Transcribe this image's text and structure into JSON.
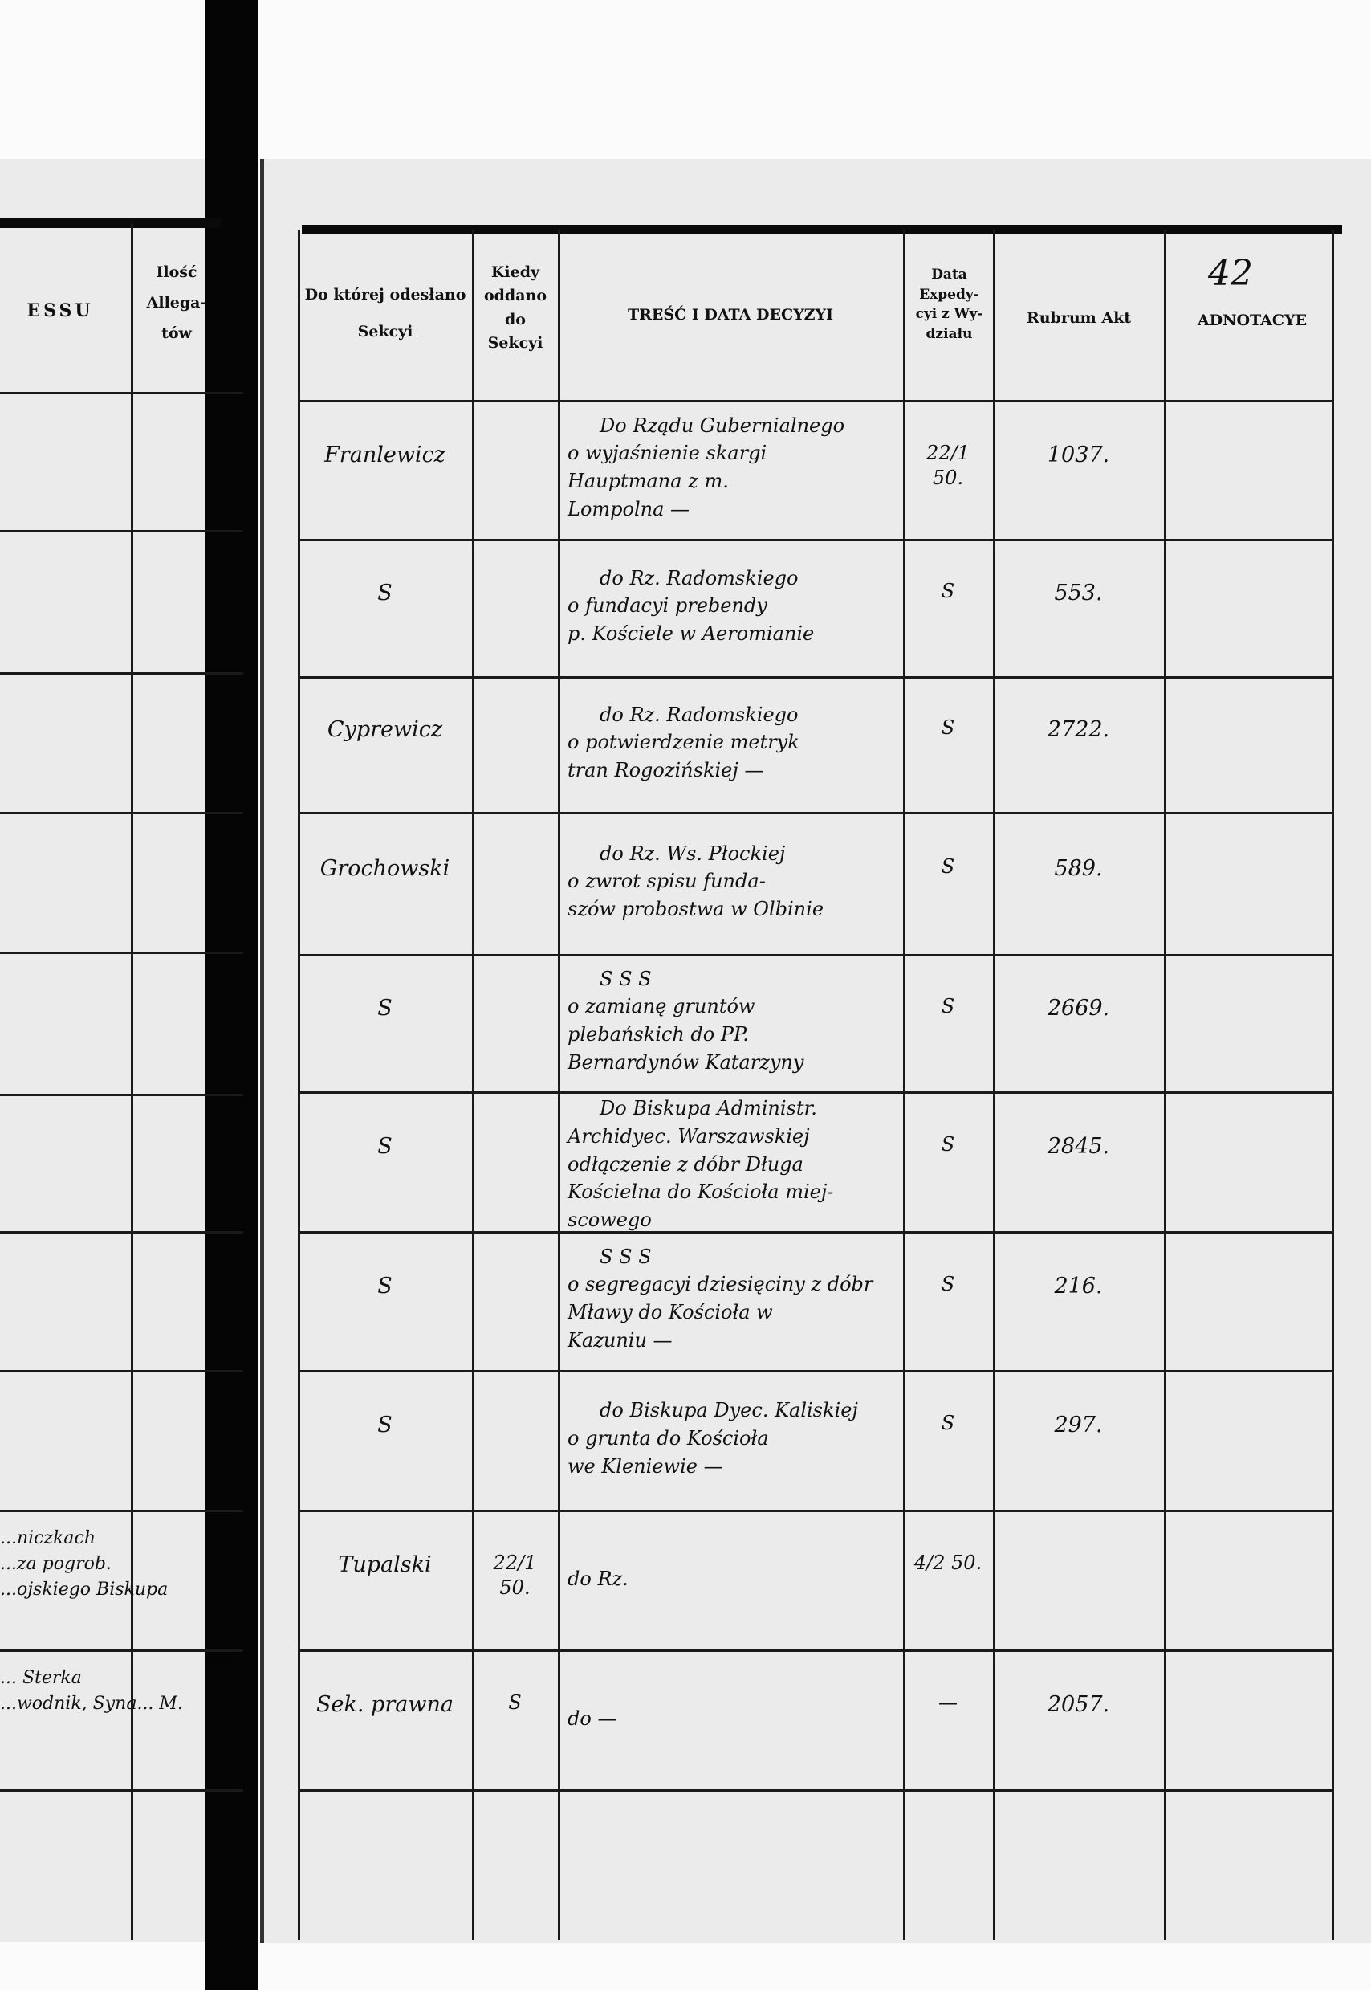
{
  "left_page": {
    "headers": {
      "process_fragment": "ESSU",
      "allegat_count": "Ilość Allega- tów"
    },
    "fragments": [
      {
        "row": 9,
        "lines": [
          "...niczkach",
          "...za pogrob.",
          "...ojskiego Biskupa"
        ]
      },
      {
        "row": 10,
        "lines": [
          "... Sterka",
          "...wodnik, Syna...  M."
        ]
      }
    ]
  },
  "right_page": {
    "folio_number": "42",
    "headers": {
      "section": "Do której odesłano Sekcyi",
      "when_given": "Kiedy oddano do Sekcyi",
      "content": "TREŚĆ I DATA DECYZYI",
      "expedition_date": "Data Expedy- cyi z Wy- działu",
      "rubrum": "Rubrum Akt",
      "annotations": "ADNOTACYE"
    },
    "rows": [
      {
        "section": "Franlewicz",
        "when_given": "",
        "content": [
          "Do Rządu Gubernialnego",
          "o wyjaśnienie skargi",
          "Hauptmana z m.",
          "Lompolna —"
        ],
        "expedition_date": "22/1 50.",
        "rubrum": "1037.",
        "annotation": ""
      },
      {
        "section": "S",
        "when_given": "",
        "content": [
          "do Rz. Radomskiego",
          "o fundacyi prebendy",
          "p. Kościele w Aeromianie"
        ],
        "expedition_date": "S",
        "rubrum": "553.",
        "annotation": ""
      },
      {
        "section": "Cyprewicz",
        "when_given": "",
        "content": [
          "do Rz. Radomskiego",
          "o potwierdzenie metryk",
          "tran Rogozińskiej —"
        ],
        "expedition_date": "S",
        "rubrum": "2722.",
        "annotation": ""
      },
      {
        "section": "Grochowski",
        "when_given": "",
        "content": [
          "do Rz. Ws. Płockiej",
          "o zwrot spisu funda-",
          "szów probostwa w Olbinie"
        ],
        "expedition_date": "S",
        "rubrum": "589.",
        "annotation": ""
      },
      {
        "section": "S",
        "when_given": "",
        "content": [
          "S   S   S",
          "o zamianę gruntów",
          "plebańskich do PP.",
          "Bernardynów Katarzyny"
        ],
        "expedition_date": "S",
        "rubrum": "2669.",
        "annotation": ""
      },
      {
        "section": "S",
        "when_given": "",
        "content": [
          "Do Biskupa Administr.",
          "Archidyec. Warszawskiej",
          "odłączenie z dóbr Długa",
          "Kościelna do Kościoła miej-",
          "scowego"
        ],
        "expedition_date": "S",
        "rubrum": "2845.",
        "annotation": ""
      },
      {
        "section": "S",
        "when_given": "",
        "content": [
          "S   S   S",
          "o segregacyi dziesięciny z dóbr",
          "Mławy do Kościoła w",
          "Kazuniu —"
        ],
        "expedition_date": "S",
        "rubrum": "216.",
        "annotation": ""
      },
      {
        "section": "S",
        "when_given": "",
        "content": [
          "do Biskupa Dyec. Kaliskiej",
          "o grunta do Kościoła",
          "we Kleniewie —"
        ],
        "expedition_date": "S",
        "rubrum": "297.",
        "annotation": ""
      },
      {
        "section": "Tupalski",
        "when_given": "22/1 50.",
        "content": [
          "do Rz."
        ],
        "expedition_date": "4/2 50.",
        "rubrum": "",
        "annotation": ""
      },
      {
        "section": "Sek. prawna",
        "when_given": "S",
        "content": [
          "do —"
        ],
        "expedition_date": "—",
        "rubrum": "2057.",
        "annotation": ""
      }
    ]
  }
}
